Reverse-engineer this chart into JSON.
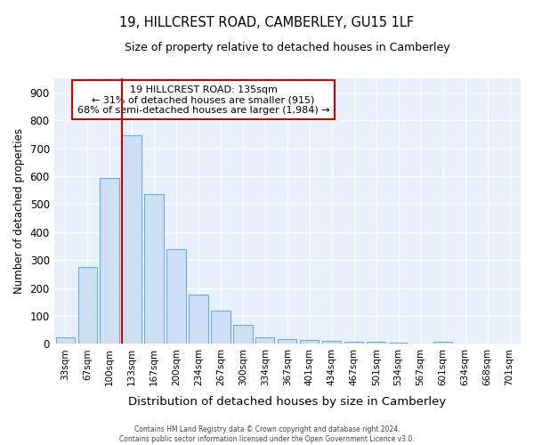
{
  "title": "19, HILLCREST ROAD, CAMBERLEY, GU15 1LF",
  "subtitle": "Size of property relative to detached houses in Camberley",
  "xlabel": "Distribution of detached houses by size in Camberley",
  "ylabel": "Number of detached properties",
  "categories": [
    "33sqm",
    "67sqm",
    "100sqm",
    "133sqm",
    "167sqm",
    "200sqm",
    "234sqm",
    "267sqm",
    "300sqm",
    "334sqm",
    "367sqm",
    "401sqm",
    "434sqm",
    "467sqm",
    "501sqm",
    "534sqm",
    "567sqm",
    "601sqm",
    "634sqm",
    "668sqm",
    "701sqm"
  ],
  "values": [
    25,
    275,
    595,
    745,
    535,
    340,
    178,
    120,
    68,
    25,
    18,
    15,
    10,
    8,
    7,
    5,
    0,
    8,
    0,
    0,
    0
  ],
  "bar_color": "#ccdff5",
  "bar_edge_color": "#6aafd6",
  "property_bin_index": 3,
  "annotation_title": "19 HILLCREST ROAD: 135sqm",
  "annotation_line2": "← 31% of detached houses are smaller (915)",
  "annotation_line3": "68% of semi-detached houses are larger (1,984) →",
  "annotation_box_color": "#cc0000",
  "ylim": [
    0,
    950
  ],
  "yticks": [
    0,
    100,
    200,
    300,
    400,
    500,
    600,
    700,
    800,
    900
  ],
  "background_color": "#e8f0fb",
  "grid_color": "#ffffff",
  "fig_background": "#ffffff",
  "footer_line1": "Contains HM Land Registry data © Crown copyright and database right 2024.",
  "footer_line2": "Contains public sector information licensed under the Open Government Licence v3.0."
}
